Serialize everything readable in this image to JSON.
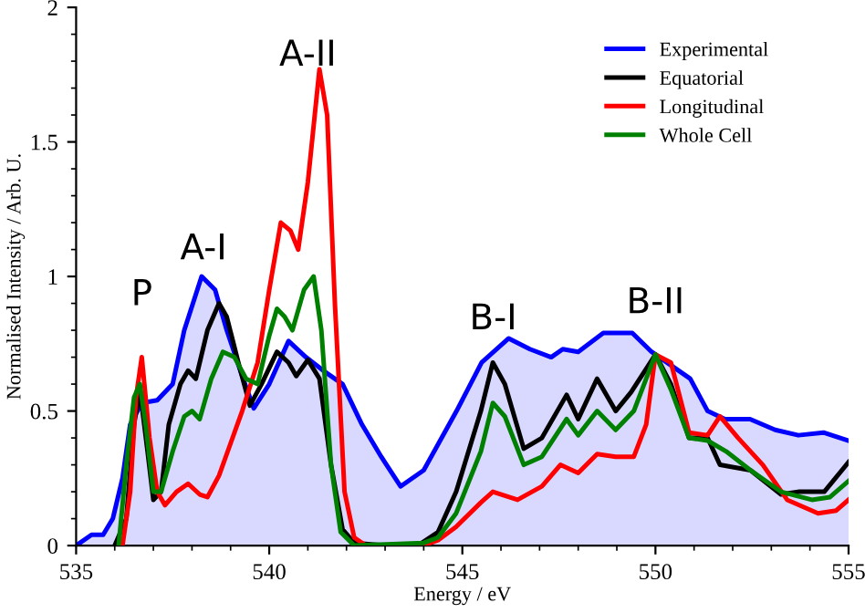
{
  "chart_data": {
    "type": "line",
    "xlabel": "Energy / eV",
    "ylabel": "Normalised Intensity / Arb. U.",
    "xlim": [
      535,
      555
    ],
    "xticks": [
      535,
      540,
      545,
      550,
      555
    ],
    "ylim": [
      0,
      2
    ],
    "yticks": [
      0,
      0.5,
      1,
      1.5,
      2
    ],
    "grid": false,
    "legend": "top right",
    "line_style": "solid",
    "marker": "none",
    "annotations": [
      "P",
      "A-I",
      "A-II",
      "B-I",
      "B-II"
    ],
    "series": [
      {
        "name": "Experimental",
        "type": "area",
        "color": "#0000ff",
        "x": [
          535.0,
          535.4,
          535.7,
          535.95,
          536.2,
          536.4,
          536.7,
          537.1,
          537.5,
          537.8,
          538.25,
          538.6,
          538.9,
          539.3,
          539.6,
          540.0,
          540.5,
          540.95,
          541.4,
          541.9,
          542.4,
          542.9,
          543.4,
          544.0,
          544.85,
          545.5,
          546.2,
          546.75,
          547.3,
          547.6,
          548.0,
          548.65,
          549.4,
          549.9,
          550.5,
          550.9,
          551.35,
          551.8,
          552.45,
          553.1,
          553.7,
          554.35,
          555.0
        ],
        "values": [
          0,
          0.04,
          0.04,
          0.1,
          0.25,
          0.45,
          0.53,
          0.54,
          0.6,
          0.8,
          1.0,
          0.95,
          0.8,
          0.63,
          0.51,
          0.6,
          0.76,
          0.7,
          0.65,
          0.6,
          0.45,
          0.33,
          0.22,
          0.28,
          0.5,
          0.68,
          0.77,
          0.73,
          0.7,
          0.73,
          0.72,
          0.79,
          0.79,
          0.72,
          0.66,
          0.62,
          0.5,
          0.47,
          0.47,
          0.43,
          0.41,
          0.42,
          0.39
        ]
      },
      {
        "name": "Equatorial",
        "color": "#000000",
        "x": [
          536.0,
          536.3,
          536.5,
          536.65,
          536.85,
          537.0,
          537.2,
          537.4,
          537.7,
          537.9,
          538.1,
          538.4,
          538.7,
          538.9,
          539.2,
          539.5,
          539.8,
          540.2,
          540.5,
          540.7,
          541.0,
          541.3,
          541.6,
          541.9,
          542.2,
          543.0,
          543.9,
          544.37,
          544.84,
          545.48,
          545.79,
          546.1,
          546.59,
          547.06,
          547.7,
          548.0,
          548.49,
          548.97,
          549.37,
          550.0,
          550.4,
          550.87,
          551.35,
          551.67,
          552.46,
          553.25,
          553.73,
          554.37,
          555.0
        ],
        "values": [
          0,
          0.1,
          0.45,
          0.58,
          0.35,
          0.17,
          0.2,
          0.45,
          0.6,
          0.65,
          0.62,
          0.8,
          0.9,
          0.85,
          0.68,
          0.52,
          0.6,
          0.72,
          0.68,
          0.63,
          0.69,
          0.62,
          0.3,
          0.06,
          0.01,
          0,
          0.005,
          0.05,
          0.2,
          0.5,
          0.68,
          0.6,
          0.36,
          0.4,
          0.56,
          0.47,
          0.62,
          0.5,
          0.57,
          0.71,
          0.6,
          0.4,
          0.4,
          0.3,
          0.28,
          0.19,
          0.2,
          0.2,
          0.31
        ]
      },
      {
        "name": "Longitudinal",
        "color": "#ff0000",
        "x": [
          536.2,
          536.4,
          536.55,
          536.7,
          536.9,
          537.1,
          537.3,
          537.6,
          537.9,
          538.2,
          538.4,
          538.7,
          539.0,
          539.3,
          539.7,
          540.0,
          540.3,
          540.55,
          540.75,
          541.0,
          541.3,
          541.5,
          541.7,
          541.95,
          542.2,
          542.5,
          544.0,
          544.37,
          544.84,
          545.48,
          545.79,
          546.43,
          547.06,
          547.54,
          548.0,
          548.49,
          548.97,
          549.44,
          549.76,
          550.0,
          550.4,
          550.87,
          551.35,
          551.67,
          552.14,
          552.78,
          553.41,
          554.21,
          554.68,
          555.0
        ],
        "values": [
          0,
          0.2,
          0.55,
          0.7,
          0.4,
          0.2,
          0.15,
          0.2,
          0.23,
          0.19,
          0.18,
          0.26,
          0.38,
          0.5,
          0.68,
          0.95,
          1.2,
          1.17,
          1.1,
          1.35,
          1.77,
          1.6,
          0.9,
          0.2,
          0.03,
          0,
          0,
          0.02,
          0.07,
          0.16,
          0.2,
          0.17,
          0.22,
          0.3,
          0.27,
          0.34,
          0.33,
          0.33,
          0.45,
          0.71,
          0.68,
          0.42,
          0.41,
          0.48,
          0.4,
          0.3,
          0.17,
          0.12,
          0.13,
          0.17
        ]
      },
      {
        "name": "Whole Cell",
        "color": "#008000",
        "x": [
          536.1,
          536.3,
          536.5,
          536.65,
          536.8,
          537.0,
          537.2,
          537.5,
          537.8,
          538.0,
          538.2,
          538.5,
          538.8,
          539.1,
          539.4,
          539.7,
          540.0,
          540.2,
          540.4,
          540.6,
          540.9,
          541.15,
          541.35,
          541.6,
          541.85,
          542.2,
          544.0,
          544.37,
          544.84,
          545.48,
          545.79,
          546.1,
          546.59,
          547.06,
          547.7,
          548.0,
          548.49,
          548.97,
          549.44,
          550.0,
          550.4,
          550.87,
          551.35,
          551.83,
          552.46,
          553.25,
          554.05,
          554.52,
          555.0
        ],
        "values": [
          0,
          0.3,
          0.55,
          0.6,
          0.45,
          0.2,
          0.2,
          0.35,
          0.48,
          0.5,
          0.47,
          0.62,
          0.72,
          0.7,
          0.62,
          0.6,
          0.78,
          0.88,
          0.85,
          0.8,
          0.95,
          1.0,
          0.8,
          0.3,
          0.05,
          0,
          0.01,
          0.03,
          0.12,
          0.35,
          0.53,
          0.48,
          0.3,
          0.33,
          0.47,
          0.41,
          0.5,
          0.43,
          0.5,
          0.71,
          0.58,
          0.4,
          0.39,
          0.35,
          0.28,
          0.2,
          0.17,
          0.18,
          0.24
        ]
      }
    ]
  }
}
